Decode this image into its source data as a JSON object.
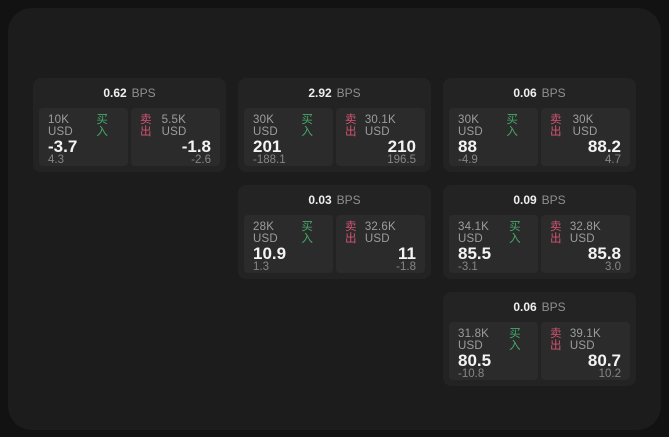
{
  "colors": {
    "buy": "#45a96a",
    "sell": "#d25570",
    "panel_bg": "#1c1c1d",
    "card_bg": "#232324",
    "tile_bg": "#2b2b2c"
  },
  "cards": [
    {
      "bps": "0.62",
      "bps_unit": "BPS",
      "buy": {
        "size": "10K USD",
        "side": "买入",
        "price": "-3.7",
        "delta": "4.3"
      },
      "sell": {
        "side": "卖出",
        "size": "5.5K USD",
        "price": "-1.8",
        "delta": "-2.6"
      }
    },
    {
      "bps": "2.92",
      "bps_unit": "BPS",
      "buy": {
        "size": "30K USD",
        "side": "买入",
        "price": "201",
        "delta": "-188.1"
      },
      "sell": {
        "side": "卖出",
        "size": "30.1K USD",
        "price": "210",
        "delta": "196.5"
      }
    },
    {
      "bps": "0.06",
      "bps_unit": "BPS",
      "buy": {
        "size": "30K USD",
        "side": "买入",
        "price": "88",
        "delta": "-4.9"
      },
      "sell": {
        "side": "卖出",
        "size": "30K USD",
        "price": "88.2",
        "delta": "4.7"
      }
    },
    {
      "bps": "0.03",
      "bps_unit": "BPS",
      "buy": {
        "size": "28K USD",
        "side": "买入",
        "price": "10.9",
        "delta": "1.3"
      },
      "sell": {
        "side": "卖出",
        "size": "32.6K USD",
        "price": "11",
        "delta": "-1.8"
      }
    },
    {
      "bps": "0.09",
      "bps_unit": "BPS",
      "buy": {
        "size": "34.1K USD",
        "side": "买入",
        "price": "85.5",
        "delta": "-3.1"
      },
      "sell": {
        "side": "卖出",
        "size": "32.8K USD",
        "price": "85.8",
        "delta": "3.0"
      }
    },
    {
      "bps": "0.06",
      "bps_unit": "BPS",
      "buy": {
        "size": "31.8K USD",
        "side": "买入",
        "price": "80.5",
        "delta": "-10.8"
      },
      "sell": {
        "side": "卖出",
        "size": "39.1K USD",
        "price": "80.7",
        "delta": "10.2"
      }
    }
  ]
}
